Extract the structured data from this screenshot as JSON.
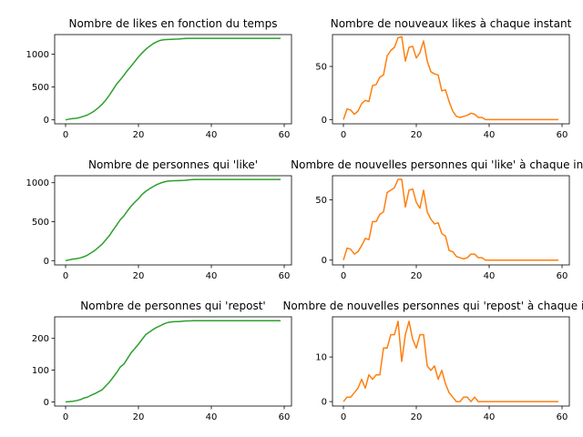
{
  "chart_data": [
    {
      "type": "line",
      "title": "Nombre de likes en fonction du temps",
      "xlim": [
        0,
        59
      ],
      "ylim": [
        -60,
        1300
      ],
      "xticks": [
        0,
        20,
        40,
        60
      ],
      "yticks": [
        0,
        500,
        1000
      ],
      "grid": false,
      "series": [
        {
          "color": "#2ca02c",
          "x": [
            0,
            1,
            2,
            3,
            4,
            5,
            6,
            7,
            8,
            9,
            10,
            11,
            12,
            13,
            14,
            15,
            16,
            17,
            18,
            19,
            20,
            21,
            22,
            23,
            24,
            25,
            26,
            27,
            28,
            29,
            30,
            31,
            32,
            33,
            34,
            35,
            36,
            37,
            38,
            39,
            40,
            41,
            42,
            43,
            44,
            45,
            46,
            47,
            48,
            49,
            50,
            51,
            52,
            53,
            54,
            55,
            56,
            57,
            58,
            59
          ],
          "values": [
            0,
            12,
            20,
            25,
            38,
            55,
            75,
            105,
            140,
            185,
            235,
            300,
            375,
            460,
            545,
            610,
            680,
            755,
            820,
            890,
            960,
            1020,
            1075,
            1120,
            1160,
            1190,
            1212,
            1222,
            1226,
            1228,
            1230,
            1233,
            1238,
            1241,
            1242,
            1242,
            1242,
            1242,
            1242,
            1242,
            1242,
            1242,
            1242,
            1242,
            1242,
            1242,
            1242,
            1242,
            1242,
            1242,
            1242,
            1242,
            1242,
            1242,
            1242,
            1242,
            1242,
            1242,
            1242,
            1242
          ]
        }
      ]
    },
    {
      "type": "line",
      "title": "Nombre de nouveaux likes à chaque instant",
      "xlim": [
        0,
        59
      ],
      "ylim": [
        -4,
        80
      ],
      "xticks": [
        0,
        20,
        40,
        60
      ],
      "yticks": [
        0,
        50
      ],
      "grid": false,
      "series": [
        {
          "color": "#ff7f0e",
          "x": [
            0,
            1,
            2,
            3,
            4,
            5,
            6,
            7,
            8,
            9,
            10,
            11,
            12,
            13,
            14,
            15,
            16,
            17,
            18,
            19,
            20,
            21,
            22,
            23,
            24,
            25,
            26,
            27,
            28,
            29,
            30,
            31,
            32,
            33,
            34,
            35,
            36,
            37,
            38,
            39,
            40,
            41,
            42,
            43,
            44,
            45,
            46,
            47,
            48,
            49,
            50,
            51,
            52,
            53,
            54,
            55,
            56,
            57,
            58,
            59
          ],
          "values": [
            0,
            10,
            9,
            5,
            8,
            15,
            18,
            17,
            32,
            33,
            40,
            42,
            60,
            65,
            68,
            77,
            78,
            55,
            68,
            69,
            58,
            63,
            74,
            55,
            45,
            43,
            42,
            27,
            28,
            17,
            8,
            3,
            2,
            3,
            4,
            6,
            5,
            2,
            2,
            0,
            0,
            0,
            0,
            0,
            0,
            0,
            0,
            0,
            0,
            0,
            0,
            0,
            0,
            0,
            0,
            0,
            0,
            0,
            0,
            0
          ]
        }
      ]
    },
    {
      "type": "line",
      "title": "Nombre de personnes qui 'like'",
      "xlim": [
        0,
        59
      ],
      "ylim": [
        -55,
        1090
      ],
      "xticks": [
        0,
        20,
        40,
        60
      ],
      "yticks": [
        0,
        500,
        1000
      ],
      "grid": false,
      "series": [
        {
          "color": "#2ca02c",
          "x": [
            0,
            1,
            2,
            3,
            4,
            5,
            6,
            7,
            8,
            9,
            10,
            11,
            12,
            13,
            14,
            15,
            16,
            17,
            18,
            19,
            20,
            21,
            22,
            23,
            24,
            25,
            26,
            27,
            28,
            29,
            30,
            31,
            32,
            33,
            34,
            35,
            36,
            37,
            38,
            39,
            40,
            41,
            42,
            43,
            44,
            45,
            46,
            47,
            48,
            49,
            50,
            51,
            52,
            53,
            54,
            55,
            56,
            57,
            58,
            59
          ],
          "values": [
            0,
            10,
            20,
            25,
            35,
            50,
            70,
            100,
            130,
            170,
            210,
            265,
            320,
            390,
            455,
            525,
            575,
            640,
            700,
            750,
            795,
            850,
            890,
            920,
            950,
            975,
            995,
            1010,
            1020,
            1024,
            1026,
            1027,
            1028,
            1032,
            1038,
            1041,
            1042,
            1042,
            1042,
            1042,
            1042,
            1042,
            1042,
            1042,
            1042,
            1042,
            1042,
            1042,
            1042,
            1042,
            1042,
            1042,
            1042,
            1042,
            1042,
            1042,
            1042,
            1042,
            1042,
            1042
          ]
        }
      ]
    },
    {
      "type": "line",
      "title": "Nombre de nouvelles personnes qui 'like' à chaque instant",
      "xlim": [
        0,
        59
      ],
      "ylim": [
        -4,
        70
      ],
      "xticks": [
        0,
        20,
        40,
        60
      ],
      "yticks": [
        0,
        50
      ],
      "grid": false,
      "series": [
        {
          "color": "#ff7f0e",
          "x": [
            0,
            1,
            2,
            3,
            4,
            5,
            6,
            7,
            8,
            9,
            10,
            11,
            12,
            13,
            14,
            15,
            16,
            17,
            18,
            19,
            20,
            21,
            22,
            23,
            24,
            25,
            26,
            27,
            28,
            29,
            30,
            31,
            32,
            33,
            34,
            35,
            36,
            37,
            38,
            39,
            40,
            41,
            42,
            43,
            44,
            45,
            46,
            47,
            48,
            49,
            50,
            51,
            52,
            53,
            54,
            55,
            56,
            57,
            58,
            59
          ],
          "values": [
            0,
            10,
            9,
            5,
            7,
            12,
            18,
            17,
            32,
            32,
            38,
            40,
            56,
            58,
            60,
            67,
            67,
            44,
            58,
            59,
            48,
            43,
            58,
            40,
            34,
            30,
            31,
            22,
            20,
            8,
            7,
            3,
            2,
            1,
            2,
            5,
            5,
            2,
            2,
            0,
            0,
            0,
            0,
            0,
            0,
            0,
            0,
            0,
            0,
            0,
            0,
            0,
            0,
            0,
            0,
            0,
            0,
            0,
            0,
            0
          ]
        }
      ]
    },
    {
      "type": "line",
      "title": "Nombre de personnes qui 'repost'",
      "xlim": [
        0,
        59
      ],
      "ylim": [
        -13,
        268
      ],
      "xticks": [
        0,
        20,
        40,
        60
      ],
      "yticks": [
        0,
        100,
        200
      ],
      "grid": false,
      "series": [
        {
          "color": "#2ca02c",
          "x": [
            0,
            1,
            2,
            3,
            4,
            5,
            6,
            7,
            8,
            9,
            10,
            11,
            12,
            13,
            14,
            15,
            16,
            17,
            18,
            19,
            20,
            21,
            22,
            23,
            24,
            25,
            26,
            27,
            28,
            29,
            30,
            31,
            32,
            33,
            34,
            35,
            36,
            37,
            38,
            39,
            40,
            41,
            42,
            43,
            44,
            45,
            46,
            47,
            48,
            49,
            50,
            51,
            52,
            53,
            54,
            55,
            56,
            57,
            58,
            59
          ],
          "values": [
            0,
            1,
            2,
            4,
            7,
            12,
            15,
            21,
            26,
            32,
            38,
            50,
            62,
            77,
            92,
            110,
            119,
            137,
            155,
            168,
            182,
            197,
            212,
            220,
            228,
            235,
            240,
            246,
            250,
            252,
            253,
            253,
            254,
            255,
            255,
            256,
            256,
            256,
            256,
            256,
            256,
            256,
            256,
            256,
            256,
            256,
            256,
            256,
            256,
            256,
            256,
            256,
            256,
            256,
            256,
            256,
            256,
            256,
            256,
            256
          ]
        }
      ]
    },
    {
      "type": "line",
      "title": "Nombre de nouvelles personnes qui 'repost' à chaque instant",
      "xlim": [
        0,
        59
      ],
      "ylim": [
        -1,
        19
      ],
      "xticks": [
        0,
        20,
        40,
        60
      ],
      "yticks": [
        0,
        10
      ],
      "grid": false,
      "series": [
        {
          "color": "#ff7f0e",
          "x": [
            0,
            1,
            2,
            3,
            4,
            5,
            6,
            7,
            8,
            9,
            10,
            11,
            12,
            13,
            14,
            15,
            16,
            17,
            18,
            19,
            20,
            21,
            22,
            23,
            24,
            25,
            26,
            27,
            28,
            29,
            30,
            31,
            32,
            33,
            34,
            35,
            36,
            37,
            38,
            39,
            40,
            41,
            42,
            43,
            44,
            45,
            46,
            47,
            48,
            49,
            50,
            51,
            52,
            53,
            54,
            55,
            56,
            57,
            58,
            59
          ],
          "values": [
            0,
            1,
            1,
            2,
            3,
            5,
            3,
            6,
            5,
            6,
            6,
            12,
            12,
            15,
            15,
            18,
            9,
            15,
            18,
            14,
            12,
            15,
            15,
            8,
            7,
            8,
            5,
            7,
            4,
            2,
            1,
            0,
            0,
            1,
            1,
            0,
            1,
            0,
            0,
            0,
            0,
            0,
            0,
            0,
            0,
            0,
            0,
            0,
            0,
            0,
            0,
            0,
            0,
            0,
            0,
            0,
            0,
            0,
            0,
            0
          ]
        }
      ]
    }
  ]
}
